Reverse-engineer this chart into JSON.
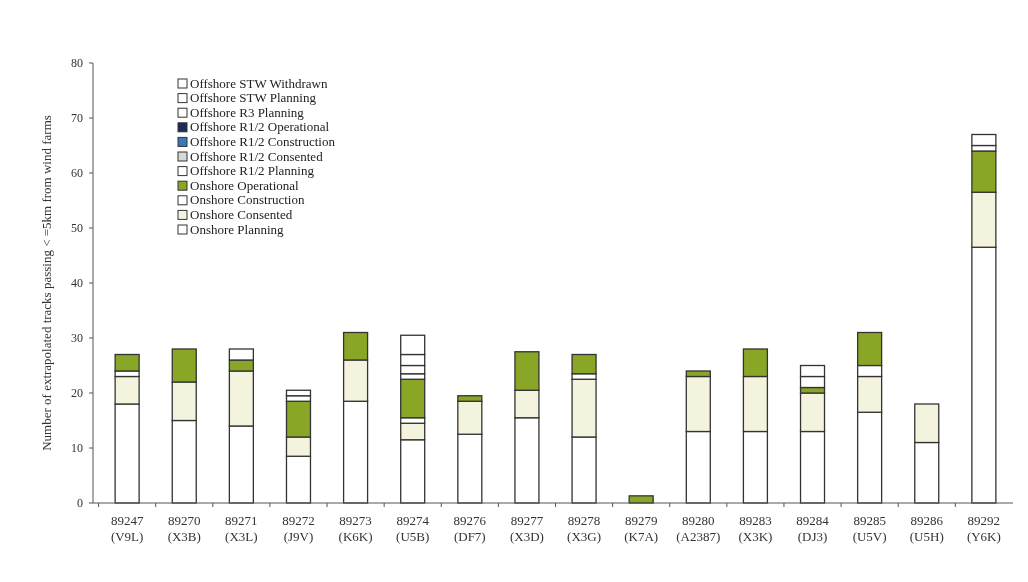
{
  "chart_data": {
    "type": "bar",
    "stacked": true,
    "ylabel": "Number of extrapolated tracks passing < =5km from wind farms",
    "categories": [
      "89247\n(V9L)",
      "89270\n(X3B)",
      "89271\n(X3L)",
      "89272\n(J9V)",
      "89273\n(K6K)",
      "89274\n(U5B)",
      "89276\n(DF7)",
      "89277\n(X3D)",
      "89278\n(X3G)",
      "89279\n(K7A)",
      "89280\n(A2387)",
      "89283\n(X3K)",
      "89284\n(DJ3)",
      "89285\n(U5V)",
      "89286\n(U5H)",
      "89292\n(Y6K)"
    ],
    "series": [
      {
        "name": "Onshore Planning",
        "color": "#ffffff",
        "values": [
          18,
          15,
          14,
          8.5,
          18.5,
          11.5,
          12.5,
          15.5,
          12,
          0,
          13,
          13,
          13,
          16.5,
          11,
          46.5
        ]
      },
      {
        "name": "Onshore Consented",
        "color": "#f4f4de",
        "values": [
          5,
          7,
          10,
          3.5,
          7.5,
          3,
          6,
          5,
          10.5,
          0,
          10,
          10,
          7,
          6.5,
          7,
          10
        ]
      },
      {
        "name": "Onshore Construction",
        "color": "#ffffff",
        "values": [
          1,
          0,
          0,
          0,
          0,
          1,
          0,
          0,
          1,
          0,
          0,
          0,
          0,
          2,
          0,
          0
        ]
      },
      {
        "name": "Onshore Operational",
        "color": "#8aa626",
        "values": [
          3,
          6,
          2,
          6.5,
          5,
          7,
          1,
          7,
          3.5,
          1.3,
          1,
          5,
          1,
          6,
          0,
          7.5
        ]
      },
      {
        "name": "Offshore R1/2 Planning",
        "color": "#ffffff",
        "values": [
          0,
          0,
          2,
          1,
          0,
          1,
          0,
          0,
          0,
          0,
          0,
          0,
          2,
          0,
          0,
          1
        ]
      },
      {
        "name": "Offshore R1/2 Consented",
        "color": "#d9d9d9",
        "values": [
          0,
          0,
          0,
          0,
          0,
          0,
          0,
          0,
          0,
          0,
          0,
          0,
          0,
          0,
          0,
          0
        ]
      },
      {
        "name": "Offshore R1/2 Construction",
        "color": "#3a78b8",
        "values": [
          0,
          0,
          0,
          0,
          0,
          0,
          0,
          0,
          0,
          0,
          0,
          0,
          0,
          0,
          0,
          0
        ]
      },
      {
        "name": "Offshore R1/2 Operational",
        "color": "#1f2a5a",
        "values": [
          0,
          0,
          0,
          0,
          0,
          0,
          0,
          0,
          0,
          0,
          0,
          0,
          0,
          0,
          0,
          0
        ]
      },
      {
        "name": "Offshore R3 Planning",
        "color": "#ffffff",
        "values": [
          0,
          0,
          0,
          1,
          0,
          1.5,
          0,
          0,
          0,
          0,
          0,
          0,
          2,
          0,
          0,
          2
        ]
      },
      {
        "name": "Offshore STW Planning",
        "color": "#ffffff",
        "values": [
          0,
          0,
          0,
          0,
          0,
          2,
          0,
          0,
          0,
          0,
          0,
          0,
          0,
          0,
          0,
          0
        ]
      },
      {
        "name": "Offshore STW Withdrawn",
        "color": "#ffffff",
        "values": [
          0,
          0,
          0,
          0,
          0,
          3.5,
          0,
          0,
          0,
          0,
          0,
          0,
          0,
          0,
          0,
          0
        ]
      }
    ],
    "ylim": [
      0,
      80
    ],
    "yticks": [
      0,
      10,
      20,
      30,
      40,
      50,
      60,
      70,
      80
    ],
    "legend": "top left"
  }
}
